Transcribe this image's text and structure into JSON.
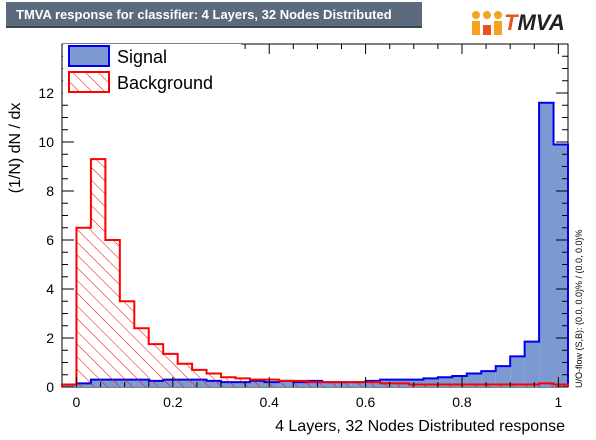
{
  "header": {
    "title": "TMVA response for classifier: 4 Layers, 32 Nodes Distributed",
    "logo_t": "T",
    "logo_rest": "MVA"
  },
  "colors": {
    "signal_fill": "#7d99d1",
    "signal_line": "#0000ee",
    "background_line": "#ff0000",
    "title_bg": "#5c6a7d",
    "logo_accent": "#e7531a"
  },
  "chart_data": {
    "type": "histogram",
    "title": "TMVA response for classifier: 4 Layers, 32 Nodes Distributed",
    "xlabel": "4 Layers, 32 Nodes Distributed response",
    "ylabel": "(1/N) dN / dx",
    "overflow_note": "U/O-flow (S,B): (0.0, 0.0)% / (0.0, 0.0)%",
    "xlim": [
      -0.03,
      1.02
    ],
    "ylim": [
      0,
      14
    ],
    "xticks": [
      "0",
      "0.2",
      "0.4",
      "0.6",
      "0.8",
      "1"
    ],
    "xtick_values": [
      0,
      0.2,
      0.4,
      0.6,
      0.8,
      1.0
    ],
    "yticks": [
      "0",
      "2",
      "4",
      "6",
      "8",
      "10",
      "12"
    ],
    "ytick_values": [
      0,
      2,
      4,
      6,
      8,
      10,
      12
    ],
    "legend_position": "top-left",
    "bin_edges": [
      -0.03,
      0.0,
      0.03,
      0.06,
      0.09,
      0.12,
      0.15,
      0.18,
      0.21,
      0.24,
      0.27,
      0.3,
      0.33,
      0.36,
      0.39,
      0.42,
      0.45,
      0.48,
      0.51,
      0.54,
      0.57,
      0.6,
      0.63,
      0.66,
      0.69,
      0.72,
      0.75,
      0.78,
      0.81,
      0.84,
      0.87,
      0.9,
      0.93,
      0.96,
      0.99,
      1.02
    ],
    "series": [
      {
        "name": "Signal",
        "values": [
          0.1,
          0.15,
          0.3,
          0.3,
          0.3,
          0.3,
          0.25,
          0.3,
          0.3,
          0.3,
          0.25,
          0.2,
          0.2,
          0.25,
          0.2,
          0.25,
          0.2,
          0.25,
          0.2,
          0.2,
          0.2,
          0.25,
          0.3,
          0.3,
          0.3,
          0.35,
          0.4,
          0.45,
          0.55,
          0.65,
          0.85,
          1.25,
          1.85,
          11.6,
          9.9
        ]
      },
      {
        "name": "Background",
        "values": [
          0.1,
          6.5,
          9.3,
          6.0,
          3.5,
          2.4,
          1.75,
          1.35,
          0.95,
          0.7,
          0.55,
          0.4,
          0.35,
          0.3,
          0.3,
          0.25,
          0.25,
          0.2,
          0.2,
          0.2,
          0.2,
          0.2,
          0.15,
          0.15,
          0.1,
          0.1,
          0.1,
          0.1,
          0.1,
          0.1,
          0.1,
          0.1,
          0.1,
          0.15,
          0.1
        ]
      }
    ]
  }
}
